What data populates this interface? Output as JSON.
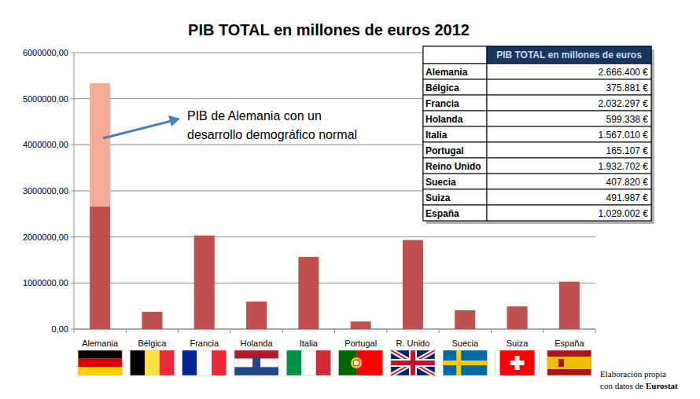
{
  "chart_data": {
    "type": "bar",
    "title": "PIB TOTAL en millones de euros 2012",
    "categories": [
      "Alemania",
      "Bélgica",
      "Francia",
      "Holanda",
      "Italia",
      "Portugal",
      "R. Unido",
      "Suecia",
      "Suiza",
      "España"
    ],
    "series": [
      {
        "color": "#c0504d",
        "values": [
          2666400,
          375881,
          2032297,
          599338,
          1567010,
          165107,
          1932702,
          407820,
          491987,
          1029002
        ]
      },
      {
        "color": "#f5ab95",
        "values": [
          2666400,
          null,
          null,
          null,
          null,
          null,
          null,
          null,
          null,
          null
        ]
      }
    ],
    "stacked": true,
    "ylim": [
      0,
      6000000
    ],
    "yticks": [
      {
        "value": 0,
        "label": "0,00"
      },
      {
        "value": 1000000,
        "label": "1000000,00"
      },
      {
        "value": 2000000,
        "label": "2000000,00"
      },
      {
        "value": 3000000,
        "label": "3000000,00"
      },
      {
        "value": 4000000,
        "label": "4000000,00"
      },
      {
        "value": 5000000,
        "label": "5000000,00"
      },
      {
        "value": 6000000,
        "label": "6000000,00"
      }
    ],
    "grid": true,
    "annotations": [
      {
        "text": [
          "PIB de Alemania con un",
          "desarrollo demográfico normal"
        ]
      }
    ]
  },
  "table": {
    "header": "PIB TOTAL en millones de euros",
    "rows": [
      [
        "Alemania",
        "2.666.400 €"
      ],
      [
        "Bélgica",
        "375.881 €"
      ],
      [
        "Francia",
        "2.032.297 €"
      ],
      [
        "Holanda",
        "599.338 €"
      ],
      [
        "Italia",
        "1.567.010 €"
      ],
      [
        "Portugal",
        "165.107 €"
      ],
      [
        "Reino Unido",
        "1.932.702 €"
      ],
      [
        "Suecia",
        "407.820 €"
      ],
      [
        "Suiza",
        "491.987 €"
      ],
      [
        "España",
        "1.029.002 €"
      ]
    ]
  },
  "source": {
    "lines": [
      "Elaboración propia",
      "con datos de"
    ],
    "emphasis": "Eurostat"
  }
}
